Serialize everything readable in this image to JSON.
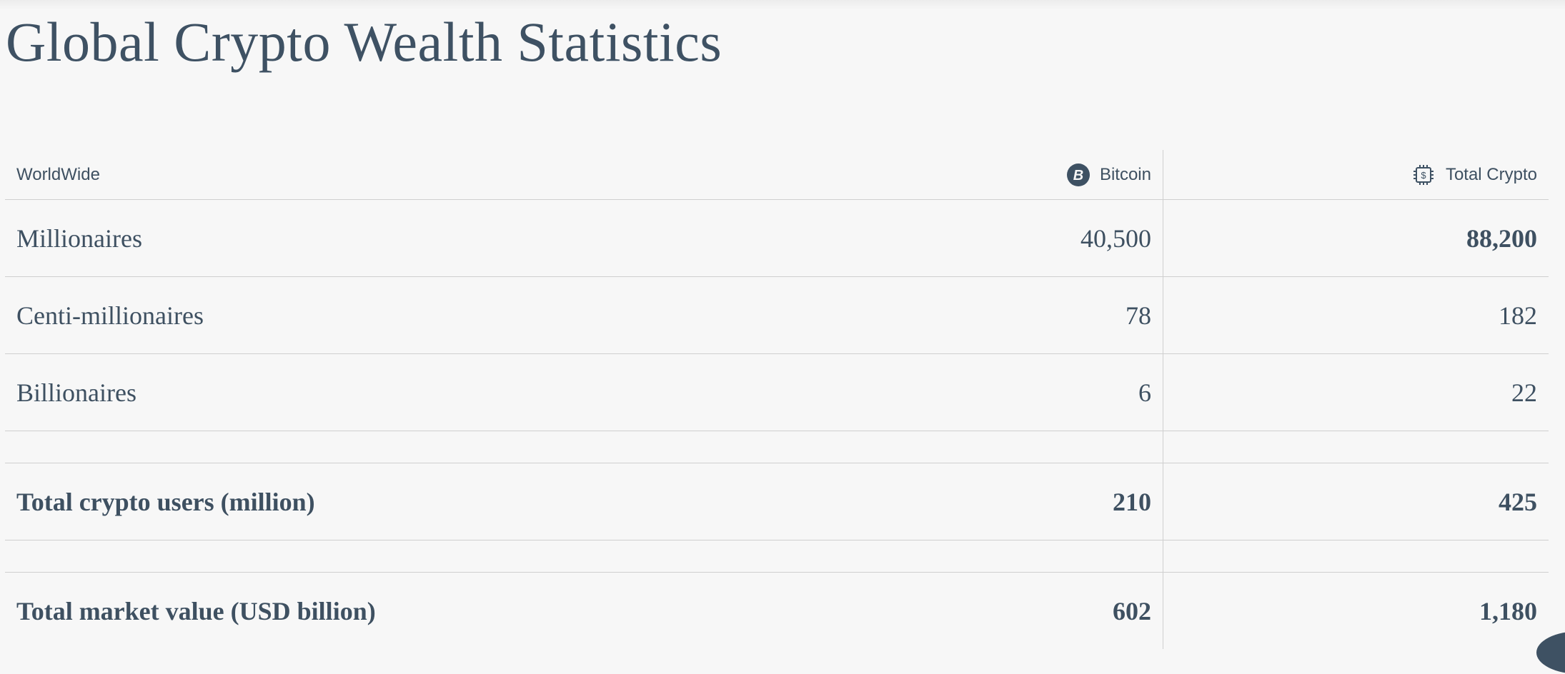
{
  "title": "Global Crypto Wealth Statistics",
  "table": {
    "headers": [
      {
        "label": "WorldWide"
      },
      {
        "label": "Bitcoin",
        "icon": "bitcoin-icon"
      },
      {
        "label": "Total Crypto",
        "icon": "crypto-chip-dollar-icon"
      }
    ],
    "rows": [
      {
        "label": "Millionaires",
        "bitcoin": "40,500",
        "total": "88,200"
      },
      {
        "label": "Centi-millionaires",
        "bitcoin": "78",
        "total": "182"
      },
      {
        "label": "Billionaires",
        "bitcoin": "6",
        "total": "22"
      },
      {
        "label": "Total crypto users (million)",
        "bitcoin": "210",
        "total": "425"
      },
      {
        "label": "Total market value (USD billion)",
        "bitcoin": "602",
        "total": "1,180"
      }
    ]
  },
  "colors": {
    "text": "#3e5163",
    "background": "#f7f7f7",
    "border": "#cfcfcf"
  }
}
